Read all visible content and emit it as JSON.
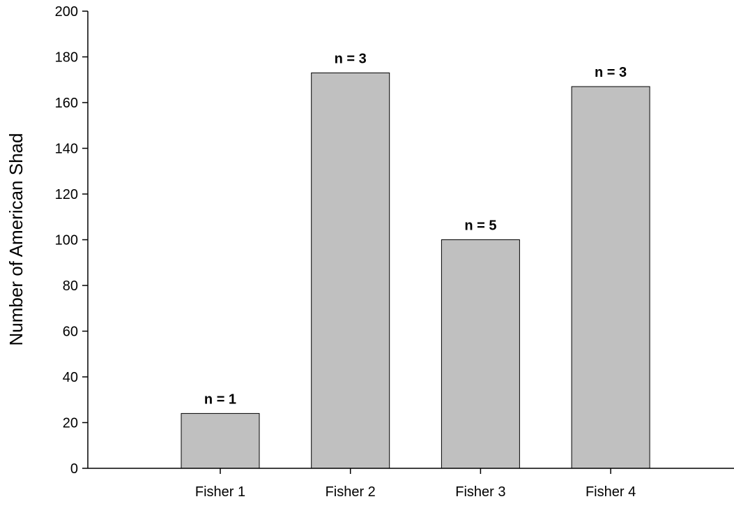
{
  "chart_data": {
    "type": "bar",
    "categories": [
      "Fisher 1",
      "Fisher 2",
      "Fisher 3",
      "Fisher 4"
    ],
    "values": [
      24,
      173,
      100,
      167
    ],
    "data_labels": [
      "n = 1",
      "n = 3",
      "n = 5",
      "n = 3"
    ],
    "title": "",
    "xlabel": "",
    "ylabel": "Number of American Shad",
    "ylim": [
      0,
      200
    ],
    "yticks": [
      0,
      20,
      40,
      60,
      80,
      100,
      120,
      140,
      160,
      180,
      200
    ],
    "grid": false,
    "legend": "none",
    "bar_color": "#c0c0c0",
    "bar_edge_color": "#000000"
  }
}
